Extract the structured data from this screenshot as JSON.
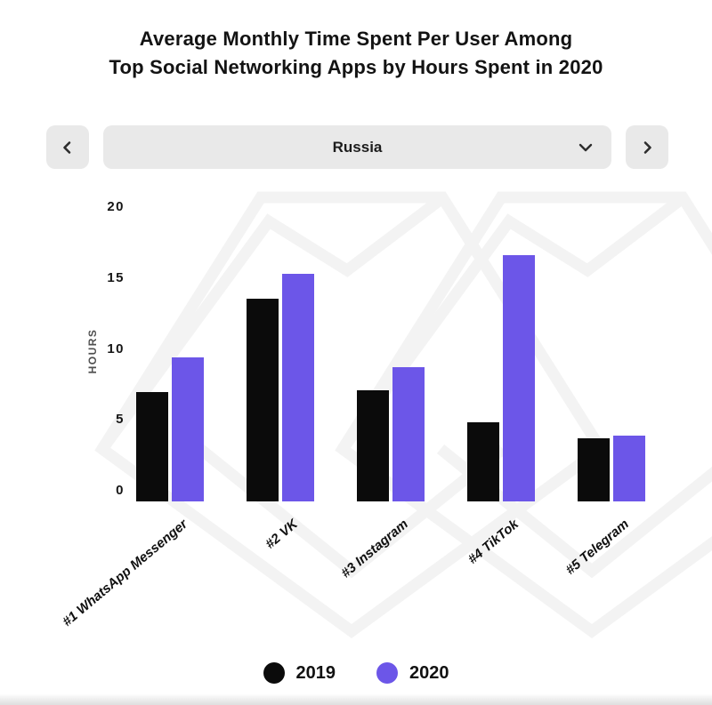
{
  "title": {
    "line1": "Average Monthly Time Spent Per User Among",
    "line2": "Top Social Networking Apps by Hours Spent in 2020"
  },
  "selector": {
    "value": "Russia",
    "icons": {
      "prev": "chevron-left",
      "next": "chevron-right",
      "open": "chevron-down"
    }
  },
  "colors": {
    "bar_2019": "#0b0b0b",
    "bar_2020": "#6c56e8",
    "control_background": "#e9e9e9",
    "watermark": "#f3f3f3",
    "text": "#131313"
  },
  "chart_data": {
    "type": "bar",
    "title": "Average Monthly Time Spent Per User Among Top Social Networking Apps by Hours Spent in 2020",
    "categories": [
      "#1 WhatsApp Messenger",
      "#2 VK",
      "#3 Instagram",
      "#4 TikTok",
      "#5 Telegram"
    ],
    "series": [
      {
        "name": "2019",
        "color": "#0b0b0b",
        "values": [
          7.5,
          13.9,
          7.6,
          5.4,
          4.3
        ]
      },
      {
        "name": "2020",
        "color": "#6c56e8",
        "values": [
          9.9,
          15.6,
          9.2,
          16.9,
          4.5
        ]
      }
    ],
    "xlabel": "",
    "ylabel": "HOURS",
    "ylim": [
      0,
      20
    ],
    "yticks": [
      20,
      15,
      10,
      5,
      0
    ],
    "grid": false,
    "legend_position": "bottom"
  }
}
